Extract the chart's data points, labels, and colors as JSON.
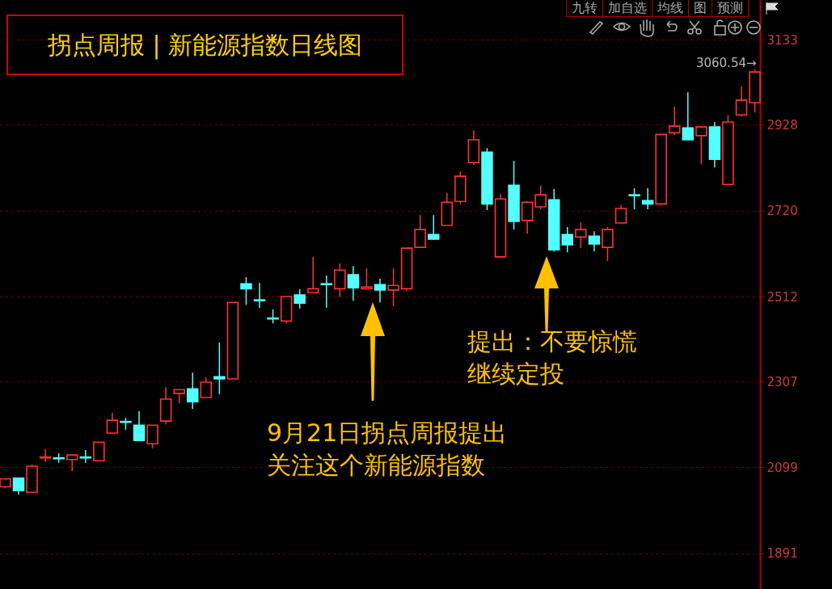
{
  "chart_data": {
    "type": "candlestick",
    "title": "拐点周报 | 新能源指数日线图",
    "categories": [
      null,
      null,
      null,
      null,
      null,
      null,
      null,
      null,
      null,
      null,
      null,
      null,
      null,
      null,
      null,
      null,
      null,
      null,
      null,
      null,
      null,
      null,
      null,
      null,
      null,
      null,
      null,
      null,
      null,
      null,
      null,
      null,
      null,
      null,
      null,
      null,
      null,
      null,
      null,
      null,
      null,
      null,
      null,
      null,
      null,
      null,
      null,
      null,
      null,
      null,
      null,
      null,
      null,
      null,
      null,
      null,
      null
    ],
    "ohlc": [
      [
        2052,
        2073,
        2048,
        2071
      ],
      [
        2073,
        2073,
        2033,
        2043
      ],
      [
        2039,
        2106,
        2039,
        2102
      ],
      [
        2122,
        2143,
        2112,
        2124
      ],
      [
        2122,
        2133,
        2110,
        2120
      ],
      [
        2118,
        2129,
        2090,
        2129
      ],
      [
        2124,
        2141,
        2110,
        2122
      ],
      [
        2115,
        2160,
        2115,
        2160
      ],
      [
        2182,
        2231,
        2182,
        2213
      ],
      [
        2210,
        2219,
        2190,
        2208
      ],
      [
        2201,
        2235,
        2164,
        2164
      ],
      [
        2156,
        2201,
        2145,
        2201
      ],
      [
        2211,
        2293,
        2203,
        2264
      ],
      [
        2278,
        2287,
        2254,
        2287
      ],
      [
        2289,
        2328,
        2240,
        2258
      ],
      [
        2268,
        2317,
        2268,
        2305
      ],
      [
        2318,
        2401,
        2276,
        2313
      ],
      [
        2313,
        2498,
        2313,
        2498
      ],
      [
        2543,
        2559,
        2492,
        2531
      ],
      [
        2504,
        2545,
        2485,
        2502
      ],
      [
        2460,
        2481,
        2447,
        2458
      ],
      [
        2453,
        2512,
        2447,
        2512
      ],
      [
        2516,
        2530,
        2483,
        2496
      ],
      [
        2522,
        2608,
        2522,
        2531
      ],
      [
        2543,
        2563,
        2485,
        2541
      ],
      [
        2531,
        2592,
        2512,
        2576
      ],
      [
        2565,
        2586,
        2502,
        2533
      ],
      [
        2531,
        2580,
        2529,
        2535
      ],
      [
        2541,
        2555,
        2498,
        2528
      ],
      [
        2528,
        2580,
        2488,
        2539
      ],
      [
        2531,
        2629,
        2526,
        2629
      ],
      [
        2631,
        2709,
        2631,
        2674
      ],
      [
        2662,
        2709,
        2649,
        2651
      ],
      [
        2684,
        2762,
        2684,
        2740
      ],
      [
        2742,
        2815,
        2736,
        2803
      ],
      [
        2836,
        2914,
        2830,
        2891
      ],
      [
        2861,
        2871,
        2721,
        2736
      ],
      [
        2608,
        2760,
        2608,
        2748
      ],
      [
        2781,
        2840,
        2674,
        2694
      ],
      [
        2696,
        2742,
        2664,
        2740
      ],
      [
        2729,
        2781,
        2723,
        2758
      ],
      [
        2746,
        2772,
        2621,
        2625
      ],
      [
        2662,
        2680,
        2619,
        2637
      ],
      [
        2656,
        2692,
        2629,
        2674
      ],
      [
        2658,
        2670,
        2621,
        2639
      ],
      [
        2631,
        2680,
        2598,
        2674
      ],
      [
        2690,
        2733,
        2690,
        2725
      ],
      [
        2758,
        2774,
        2723,
        2756
      ],
      [
        2744,
        2774,
        2723,
        2736
      ],
      [
        2736,
        2904,
        2734,
        2904
      ],
      [
        2908,
        2971,
        2903,
        2924
      ],
      [
        2920,
        3006,
        2891,
        2891
      ],
      [
        2901,
        2924,
        2832,
        2922
      ],
      [
        2922,
        2934,
        2824,
        2844
      ],
      [
        2783,
        2951,
        2783,
        2934
      ],
      [
        2951,
        3020,
        2947,
        2987
      ],
      [
        2981,
        3060.54,
        2957,
        3055
      ]
    ],
    "colors": [
      "#ff3232",
      "#54ffff",
      "#ff3232",
      "#ff3232",
      "#54ffff",
      "#ff3232",
      "#54ffff",
      "#ff3232",
      "#ff3232",
      "#54ffff",
      "#54ffff",
      "#ff3232",
      "#ff3232",
      "#ff3232",
      "#54ffff",
      "#ff3232",
      "#54ffff",
      "#ff3232",
      "#54ffff",
      "#54ffff",
      "#54ffff",
      "#ff3232",
      "#54ffff",
      "#ff3232",
      "#54ffff",
      "#ff3232",
      "#54ffff",
      "#ff3232",
      "#54ffff",
      "#ff3232",
      "#ff3232",
      "#ff3232",
      "#54ffff",
      "#ff3232",
      "#ff3232",
      "#ff3232",
      "#54ffff",
      "#ff3232",
      "#54ffff",
      "#ff3232",
      "#ff3232",
      "#54ffff",
      "#54ffff",
      "#ff3232",
      "#54ffff",
      "#ff3232",
      "#ff3232",
      "#54ffff",
      "#54ffff",
      "#ff3232",
      "#ff3232",
      "#54ffff",
      "#ff3232",
      "#54ffff",
      "#ff3232",
      "#ff3232",
      "#ff3232"
    ],
    "ylim": [
      1805,
      3229
    ],
    "yticks": [
      1891,
      2099,
      2307,
      2512,
      2720,
      2928,
      3133
    ],
    "grid": "y",
    "annotations": [
      "3060.54→",
      "9月21日拐点周报提出",
      "关注这个新能源指数",
      "提出：不要惊慌",
      "继续定投",
      "九转",
      "加自选",
      "均线",
      "图",
      "预测"
    ]
  }
}
